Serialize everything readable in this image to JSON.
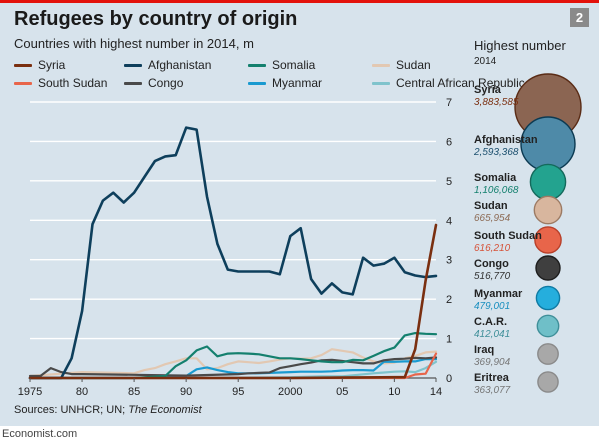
{
  "header": {
    "title": "Refugees by country of origin",
    "badge": "2",
    "subtitle": "Countries with highest number in 2014, m"
  },
  "footer": {
    "sources_prefix": "Sources: UNHCR; UN; ",
    "sources_italic": "The Economist",
    "credit": "Economist.com"
  },
  "right_panel": {
    "heading": "Highest number",
    "year": "2014",
    "items": [
      {
        "label": "Syria",
        "value": "3,883,585",
        "fill": "#8b6552",
        "stroke": "#5a2c16",
        "text_color": "#7a2f10"
      },
      {
        "label": "Afghanistan",
        "value": "2,593,368",
        "fill": "#4e8aa8",
        "stroke": "#0c3a52",
        "text_color": "#1b4f6e"
      },
      {
        "label": "Somalia",
        "value": "1,106,068",
        "fill": "#23a38f",
        "stroke": "#146a5c",
        "text_color": "#14806e"
      },
      {
        "label": "Sudan",
        "value": "665,954",
        "fill": "#d8b69e",
        "stroke": "#9c7a63",
        "text_color": "#8d6b55"
      },
      {
        "label": "South Sudan",
        "value": "616,210",
        "fill": "#e8654a",
        "stroke": "#b8402a",
        "text_color": "#d6533a"
      },
      {
        "label": "Congo",
        "value": "516,770",
        "fill": "#3f3f3f",
        "stroke": "#1e1e1e",
        "text_color": "#333333"
      },
      {
        "label": "Myanmar",
        "value": "479,001",
        "fill": "#25aedd",
        "stroke": "#0f7aa3",
        "text_color": "#1a8fbf"
      },
      {
        "label": "C.A.R.",
        "value": "412,041",
        "fill": "#6fbfc8",
        "stroke": "#3f8f99",
        "text_color": "#3f8f99"
      },
      {
        "label": "Iraq",
        "value": "369,904",
        "fill": "#a8a8a8",
        "stroke": "#8a8a8a",
        "text_color": "#777777"
      },
      {
        "label": "Eritrea",
        "value": "363,077",
        "fill": "#a8a8a8",
        "stroke": "#8a8a8a",
        "text_color": "#777777"
      }
    ]
  },
  "chart_data": {
    "type": "line",
    "title": "Refugees by country of origin",
    "subtitle": "Countries with highest number in 2014, m",
    "xlabel": "",
    "ylabel": "",
    "x_ticks": [
      1975,
      80,
      85,
      90,
      95,
      2000,
      "05",
      10,
      14
    ],
    "x_tick_years": [
      1975,
      1980,
      1985,
      1990,
      1995,
      2000,
      2005,
      2010,
      2014
    ],
    "y_ticks": [
      0,
      1,
      2,
      3,
      4,
      5,
      6,
      7
    ],
    "xlim": [
      1975,
      2014
    ],
    "ylim": [
      0,
      7
    ],
    "grid": true,
    "legend_position": "top",
    "series": [
      {
        "name": "Syria",
        "color": "#7a2f10",
        "x": [
          1975,
          1980,
          1985,
          1990,
          1995,
          2000,
          2005,
          2010,
          2011,
          2012,
          2013,
          2014
        ],
        "y": [
          0,
          0,
          0,
          0,
          0,
          0,
          0.01,
          0.02,
          0.02,
          0.73,
          2.47,
          3.88
        ]
      },
      {
        "name": "Afghanistan",
        "color": "#0e3f5c",
        "x": [
          1975,
          1976,
          1977,
          1978,
          1979,
          1980,
          1981,
          1982,
          1983,
          1984,
          1985,
          1986,
          1987,
          1988,
          1989,
          1990,
          1991,
          1992,
          1993,
          1994,
          1995,
          1996,
          1997,
          1998,
          1999,
          2000,
          2001,
          2002,
          2003,
          2004,
          2005,
          2006,
          2007,
          2008,
          2009,
          2010,
          2011,
          2012,
          2013,
          2014
        ],
        "y": [
          0,
          0,
          0,
          0,
          0.5,
          1.7,
          3.9,
          4.5,
          4.7,
          4.45,
          4.7,
          5.1,
          5.5,
          5.62,
          5.65,
          6.35,
          6.3,
          4.6,
          3.4,
          2.75,
          2.7,
          2.7,
          2.7,
          2.7,
          2.63,
          3.6,
          3.8,
          2.51,
          2.14,
          2.4,
          2.17,
          2.12,
          3.05,
          2.85,
          2.9,
          3.05,
          2.68,
          2.6,
          2.56,
          2.59
        ]
      },
      {
        "name": "Somalia",
        "color": "#14806e",
        "x": [
          1975,
          1980,
          1985,
          1988,
          1989,
          1990,
          1991,
          1992,
          1993,
          1994,
          1995,
          1996,
          1997,
          1998,
          1999,
          2000,
          2001,
          2002,
          2003,
          2004,
          2005,
          2006,
          2007,
          2008,
          2009,
          2010,
          2011,
          2012,
          2013,
          2014
        ],
        "y": [
          0,
          0,
          0,
          0.05,
          0.3,
          0.45,
          0.7,
          0.8,
          0.55,
          0.62,
          0.63,
          0.62,
          0.6,
          0.55,
          0.5,
          0.5,
          0.48,
          0.45,
          0.42,
          0.4,
          0.4,
          0.46,
          0.45,
          0.56,
          0.68,
          0.77,
          1.08,
          1.14,
          1.12,
          1.11
        ]
      },
      {
        "name": "Sudan",
        "color": "#e2c8b2",
        "x": [
          1975,
          1980,
          1985,
          1986,
          1987,
          1988,
          1989,
          1990,
          1991,
          1992,
          1993,
          1994,
          1995,
          1996,
          1997,
          1998,
          1999,
          2000,
          2001,
          2002,
          2003,
          2004,
          2005,
          2006,
          2007,
          2008,
          2009,
          2010,
          2011,
          2012,
          2013,
          2014
        ],
        "y": [
          0.05,
          0.15,
          0.12,
          0.2,
          0.25,
          0.35,
          0.42,
          0.5,
          0.5,
          0.22,
          0.25,
          0.35,
          0.42,
          0.4,
          0.38,
          0.42,
          0.47,
          0.5,
          0.49,
          0.5,
          0.58,
          0.73,
          0.69,
          0.65,
          0.52,
          0.42,
          0.37,
          0.39,
          0.5,
          0.56,
          0.65,
          0.67
        ]
      },
      {
        "name": "South Sudan",
        "color": "#e8654a",
        "x": [
          1975,
          1980,
          2000,
          2010,
          2011,
          2012,
          2013,
          2014
        ],
        "y": [
          0,
          0,
          0,
          0,
          0,
          0.09,
          0.11,
          0.62
        ]
      },
      {
        "name": "Congo",
        "color": "#4a4a4a",
        "x": [
          1975,
          1976,
          1977,
          1978,
          1979,
          1980,
          1985,
          1990,
          1995,
          1996,
          1997,
          1998,
          1999,
          2000,
          2001,
          2002,
          2003,
          2004,
          2005,
          2006,
          2007,
          2008,
          2009,
          2010,
          2011,
          2012,
          2013,
          2014
        ],
        "y": [
          0.05,
          0.05,
          0.25,
          0.15,
          0.1,
          0.1,
          0.08,
          0.06,
          0.1,
          0.12,
          0.13,
          0.14,
          0.25,
          0.3,
          0.35,
          0.39,
          0.45,
          0.46,
          0.43,
          0.4,
          0.37,
          0.37,
          0.45,
          0.48,
          0.49,
          0.51,
          0.5,
          0.52
        ]
      },
      {
        "name": "Myanmar",
        "color": "#1a9ad0",
        "x": [
          1975,
          1980,
          1985,
          1990,
          1991,
          1992,
          1993,
          1994,
          1995,
          1996,
          1997,
          1998,
          1999,
          2000,
          2001,
          2002,
          2003,
          2004,
          2005,
          2006,
          2007,
          2008,
          2009,
          2010,
          2011,
          2012,
          2013,
          2014
        ],
        "y": [
          0,
          0,
          0,
          0.05,
          0.22,
          0.27,
          0.2,
          0.15,
          0.12,
          0.12,
          0.12,
          0.13,
          0.14,
          0.15,
          0.16,
          0.16,
          0.16,
          0.17,
          0.19,
          0.2,
          0.2,
          0.19,
          0.41,
          0.41,
          0.42,
          0.42,
          0.48,
          0.48
        ]
      },
      {
        "name": "Central African Republic",
        "color": "#7fc3cc",
        "x": [
          1975,
          1980,
          1990,
          2000,
          2003,
          2005,
          2008,
          2010,
          2011,
          2012,
          2013,
          2014
        ],
        "y": [
          0,
          0,
          0,
          0.02,
          0.04,
          0.04,
          0.12,
          0.16,
          0.17,
          0.15,
          0.25,
          0.41
        ]
      }
    ]
  }
}
